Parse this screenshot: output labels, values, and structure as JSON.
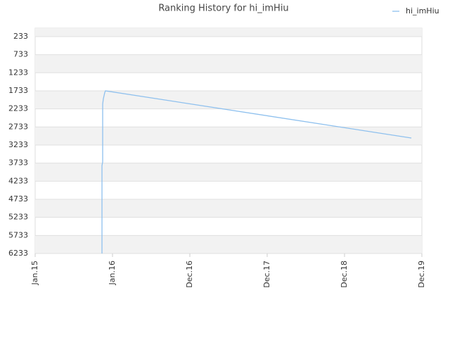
{
  "chart_data": {
    "type": "line",
    "title": "Ranking History for hi_imHiu",
    "x": [
      0.864,
      0.864,
      0.873,
      0.873,
      0.882,
      0.9,
      0.909,
      4.864
    ],
    "series": [
      {
        "name": "hi_imHiu",
        "color": "#8ec0ee",
        "values": [
          6233,
          3800,
          3700,
          2100,
          1950,
          1780,
          1733,
          3038
        ]
      }
    ],
    "xlim": [
      0,
      5
    ],
    "xticks": [
      {
        "value": 0,
        "label": "Jan.15"
      },
      {
        "value": 1,
        "label": "Jan.16"
      },
      {
        "value": 2,
        "label": "Dec.16"
      },
      {
        "value": 3,
        "label": "Dec.17"
      },
      {
        "value": 4,
        "label": "Dec.18"
      },
      {
        "value": 5,
        "label": "Dec.19"
      }
    ],
    "ylim": [
      6233,
      0
    ],
    "yticks": [
      233,
      733,
      1233,
      1733,
      2233,
      2733,
      3233,
      3733,
      4233,
      4733,
      5233,
      5733,
      6233
    ],
    "grid": true,
    "legend": "top-right"
  }
}
